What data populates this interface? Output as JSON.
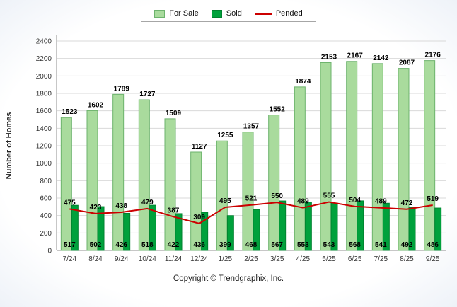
{
  "legend": {
    "for_sale": "For Sale",
    "sold": "Sold",
    "pended": "Pended"
  },
  "footer": {
    "copyright": "Copyright © Trendgraphix, Inc."
  },
  "chart_data": {
    "type": "bar",
    "title": "",
    "xlabel": "",
    "ylabel": "Number of Homes",
    "ylim": [
      0,
      2400
    ],
    "ytick_step": 200,
    "grid": true,
    "legend_position": "top",
    "categories": [
      "7/24",
      "8/24",
      "9/24",
      "10/24",
      "11/24",
      "12/24",
      "1/25",
      "2/25",
      "3/25",
      "4/25",
      "5/25",
      "6/25",
      "7/25",
      "8/25",
      "9/25"
    ],
    "series": [
      {
        "name": "For Sale",
        "type": "bar",
        "color": "#a9db9d",
        "border": "#6db36d",
        "values": [
          1523,
          1602,
          1789,
          1727,
          1509,
          1127,
          1255,
          1357,
          1552,
          1874,
          2153,
          2167,
          2142,
          2087,
          2176
        ]
      },
      {
        "name": "Sold",
        "type": "bar",
        "color": "#00a13c",
        "border": "#00822f",
        "values": [
          517,
          502,
          426,
          518,
          422,
          436,
          399,
          468,
          567,
          553,
          543,
          568,
          541,
          492,
          486
        ]
      },
      {
        "name": "Pended",
        "type": "line",
        "color": "#cc0000",
        "values": [
          475,
          423,
          438,
          479,
          387,
          309,
          495,
          521,
          550,
          489,
          555,
          504,
          489,
          472,
          519
        ]
      }
    ],
    "style": {
      "gridline_color": "#d9d9d9",
      "axis_color": "#8f8f8f",
      "tick_label_color": "#333333",
      "value_label_color": "#000000"
    }
  }
}
